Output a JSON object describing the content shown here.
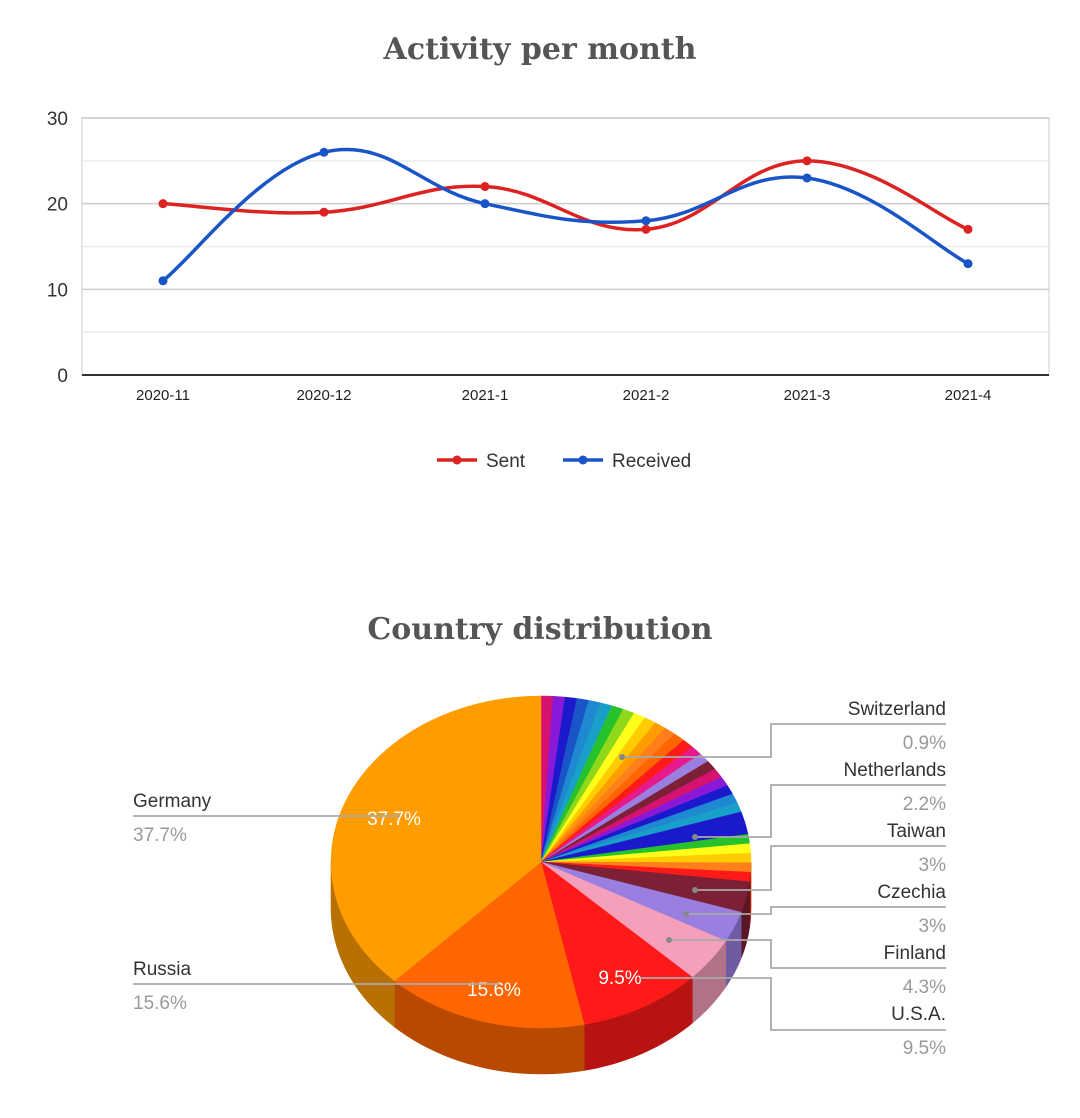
{
  "chart_data": [
    {
      "type": "line",
      "title": "Activity per month",
      "categories": [
        "2020-11",
        "2020-12",
        "2021-1",
        "2021-2",
        "2021-3",
        "2021-4"
      ],
      "series": [
        {
          "name": "Sent",
          "values": [
            20,
            19,
            22,
            17,
            25,
            17
          ],
          "color": "#dd2222"
        },
        {
          "name": "Received",
          "values": [
            11,
            26,
            20,
            18,
            23,
            13
          ],
          "color": "#1a55c8"
        }
      ],
      "ylim": [
        0,
        30
      ],
      "yticks": [
        0,
        10,
        20,
        30
      ],
      "grid": true,
      "legend": "bottom",
      "smooth": true
    },
    {
      "type": "pie",
      "title": "Country distribution",
      "style": "3d",
      "labeled_slices": [
        {
          "name": "Germany",
          "value": 37.7,
          "label": "37.7%",
          "color": "#ff9c00"
        },
        {
          "name": "Russia",
          "value": 15.6,
          "label": "15.6%",
          "color": "#ff6600"
        },
        {
          "name": "U.S.A.",
          "value": 9.5,
          "label": "9.5%",
          "color": "#ff1a1a"
        },
        {
          "name": "Finland",
          "value": 4.3,
          "label": "4.3%",
          "color": "#f59fbb"
        },
        {
          "name": "Czechia",
          "value": 3,
          "label": "3%",
          "color": "#9a7ee0"
        },
        {
          "name": "Taiwan",
          "value": 3,
          "label": "3%",
          "color": "#7b2035"
        },
        {
          "name": "Netherlands",
          "value": 2.2,
          "label": "2.2%",
          "color": "#1a1acc"
        },
        {
          "name": "Switzerland",
          "value": 0.9,
          "label": "0.9%",
          "color": "#ff7f1a"
        }
      ],
      "inner_labels": [
        "37.7%",
        "15.6%",
        "9.5%"
      ],
      "other_slice_colors": [
        "#d6126f",
        "#8a18d8",
        "#1a1acc",
        "#1a55c8",
        "#1e88d0",
        "#19a0c8",
        "#27c22b",
        "#8fd91a",
        "#ffff1a",
        "#ffcc00",
        "#ff9c00",
        "#ff6600",
        "#ff1a1a",
        "#e61a8c",
        "#9a7ee0",
        "#7b2035",
        "#d6126f",
        "#8a18d8",
        "#1a1acc",
        "#1e88d0",
        "#19a0c8",
        "#27c22b",
        "#ffff1a",
        "#ffcc00",
        "#ff7f1a",
        "#ff1a1a"
      ]
    }
  ]
}
